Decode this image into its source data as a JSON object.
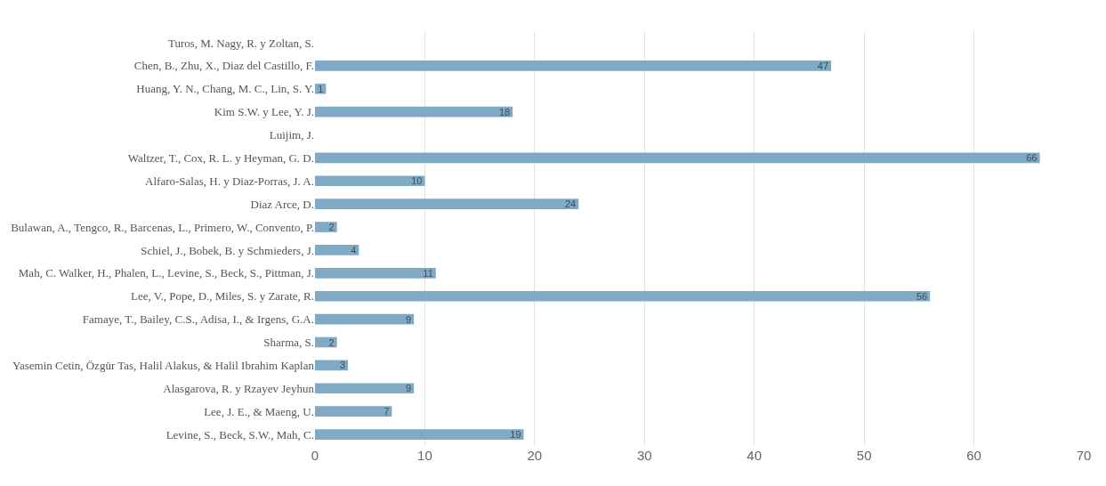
{
  "chart_data": {
    "type": "bar",
    "orientation": "horizontal",
    "categories": [
      "Turos, M. Nagy, R. y Zoltan, S.",
      "Chen, B., Zhu, X., Diaz del Castillo, F.",
      "Huang, Y. N., Chang, M. C., Lin, S. Y.",
      "Kim S.W. y Lee, Y. J.",
      "Luijim, J.",
      "Waltzer, T., Cox, R. L. y Heyman, G. D.",
      "Alfaro-Salas, H. y Diaz-Porras, J. A.",
      "Diaz Arce, D.",
      "Bulawan, A., Tengco, R., Barcenas, L., Primero, W., Convento, P.",
      "Schiel, J., Bobek, B. y Schmieders, J.",
      "Mah, C. Walker, H., Phalen, L., Levine, S., Beck, S., Pittman, J.",
      "Lee, V., Pope, D., Miles, S. y Zarate, R.",
      "Famaye, T., Bailey, C.S., Adisa, I., & Irgens, G.A.",
      "Sharma, S.",
      "Yasemin Cetin, Özgür Tas, Halil Alakus, & Halil Ibrahim Kaplan",
      "Alasgarova, R. y Rzayev Jeyhun",
      "Lee, J. E., & Maeng, U.",
      "Levine, S., Beck, S.W., Mah, C."
    ],
    "values": [
      0,
      47,
      1,
      18,
      0,
      66,
      10,
      24,
      2,
      4,
      11,
      56,
      9,
      2,
      3,
      9,
      7,
      19
    ],
    "color": "#7fa9c4",
    "value_labels": [
      null,
      "47",
      "1",
      "18",
      null,
      "66",
      "10",
      "24",
      "2",
      "4",
      "11",
      "56",
      "9",
      "2",
      "3",
      "9",
      "7",
      "19"
    ],
    "xlim": [
      0,
      70
    ],
    "xticks": [
      0,
      10,
      20,
      30,
      40,
      50,
      60,
      70
    ],
    "grid": "x"
  }
}
